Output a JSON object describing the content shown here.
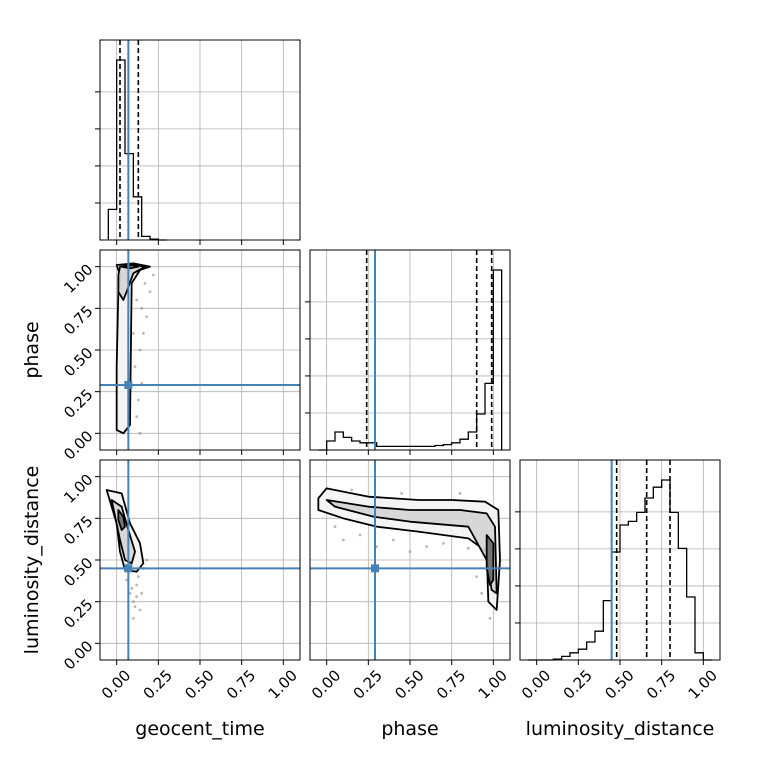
{
  "chart_data": {
    "type": "corner",
    "parameters": [
      "geocent_time",
      "phase",
      "luminosity_distance"
    ],
    "truth": {
      "geocent_time": 0.07,
      "phase": 0.29,
      "luminosity_distance": 0.45
    },
    "axis_range": [
      -0.1,
      1.1
    ],
    "ticks": [
      0.0,
      0.25,
      0.5,
      0.75,
      1.0
    ],
    "tick_labels": [
      "0.00",
      "0.25",
      "0.50",
      "0.75",
      "1.00"
    ],
    "grid": true,
    "colors": {
      "truth": "#4682b4",
      "contour": "#000000",
      "grid": "#b0b0b0",
      "sample": "#808080"
    },
    "histograms": [
      {
        "parameter": "geocent_time",
        "bin_edges": [
          -0.05,
          0.0,
          0.05,
          0.1,
          0.15,
          0.2,
          0.25,
          0.3
        ],
        "counts": [
          0.17,
          1.0,
          0.48,
          0.24,
          0.02,
          0.005,
          0.0
        ],
        "quantiles": [
          0.02,
          0.07,
          0.13
        ]
      },
      {
        "parameter": "phase",
        "bin_edges": [
          -0.05,
          0.0,
          0.05,
          0.1,
          0.15,
          0.2,
          0.25,
          0.3,
          0.35,
          0.4,
          0.45,
          0.5,
          0.55,
          0.6,
          0.65,
          0.7,
          0.75,
          0.8,
          0.85,
          0.9,
          0.95,
          1.0,
          1.05
        ],
        "counts": [
          0.0,
          0.05,
          0.1,
          0.07,
          0.05,
          0.04,
          0.04,
          0.02,
          0.02,
          0.02,
          0.02,
          0.02,
          0.02,
          0.02,
          0.025,
          0.03,
          0.04,
          0.06,
          0.1,
          0.2,
          0.37,
          1.0
        ],
        "quantiles": [
          0.24,
          0.9,
          0.99
        ]
      },
      {
        "parameter": "luminosity_distance",
        "bin_edges": [
          -0.05,
          0.0,
          0.05,
          0.1,
          0.15,
          0.2,
          0.25,
          0.3,
          0.35,
          0.4,
          0.45,
          0.5,
          0.55,
          0.6,
          0.65,
          0.7,
          0.75,
          0.8,
          0.85,
          0.9,
          0.95,
          1.0,
          1.05
        ],
        "counts": [
          0.0,
          0.0,
          0.0,
          0.005,
          0.02,
          0.04,
          0.06,
          0.1,
          0.16,
          0.33,
          0.6,
          0.75,
          0.77,
          0.82,
          0.9,
          0.96,
          1.0,
          0.82,
          0.62,
          0.35,
          0.04,
          0.0
        ],
        "quantiles": [
          0.48,
          0.66,
          0.8
        ]
      }
    ],
    "contours_2d": [
      {
        "x": "geocent_time",
        "y": "phase",
        "levels": [
          [
            [
              0.0,
              1.01
            ],
            [
              0.1,
              1.02
            ],
            [
              0.2,
              1.0
            ],
            [
              0.14,
              0.98
            ],
            [
              0.09,
              0.9
            ],
            [
              0.08,
              0.05
            ],
            [
              0.04,
              0.0
            ],
            [
              0.0,
              0.02
            ],
            [
              0.0,
              0.4
            ],
            [
              0.01,
              0.85
            ],
            [
              0.02,
              0.95
            ],
            [
              0.0,
              1.01
            ]
          ],
          [
            [
              0.02,
              1.0
            ],
            [
              0.1,
              1.01
            ],
            [
              0.17,
              1.0
            ],
            [
              0.1,
              0.96
            ],
            [
              0.06,
              0.85
            ],
            [
              0.04,
              0.8
            ],
            [
              0.01,
              0.85
            ],
            [
              0.01,
              0.95
            ],
            [
              0.02,
              1.0
            ]
          ],
          [
            [
              0.03,
              1.0
            ],
            [
              0.09,
              1.01
            ],
            [
              0.13,
              1.0
            ],
            [
              0.08,
              0.99
            ],
            [
              0.03,
              1.0
            ]
          ]
        ],
        "samples": [
          [
            0.12,
            0.1
          ],
          [
            0.15,
            0.3
          ],
          [
            0.14,
            0.5
          ],
          [
            0.16,
            0.6
          ],
          [
            0.18,
            0.7
          ],
          [
            0.2,
            0.85
          ],
          [
            0.22,
            0.95
          ],
          [
            0.13,
            0.2
          ],
          [
            0.11,
            0.4
          ],
          [
            0.15,
            0.75
          ],
          [
            0.17,
            0.9
          ],
          [
            0.1,
            0.6
          ],
          [
            0.12,
            0.8
          ],
          [
            0.19,
            1.0
          ],
          [
            0.14,
            0.0
          ]
        ]
      },
      {
        "x": "geocent_time",
        "y": "luminosity_distance",
        "levels": [
          [
            [
              -0.06,
              0.92
            ],
            [
              0.03,
              0.9
            ],
            [
              0.08,
              0.72
            ],
            [
              0.14,
              0.6
            ],
            [
              0.16,
              0.48
            ],
            [
              0.12,
              0.43
            ],
            [
              0.05,
              0.44
            ],
            [
              0.02,
              0.55
            ],
            [
              0.0,
              0.72
            ],
            [
              -0.06,
              0.92
            ]
          ],
          [
            [
              -0.03,
              0.86
            ],
            [
              0.03,
              0.82
            ],
            [
              0.07,
              0.68
            ],
            [
              0.11,
              0.55
            ],
            [
              0.09,
              0.48
            ],
            [
              0.05,
              0.5
            ],
            [
              0.02,
              0.62
            ],
            [
              -0.03,
              0.86
            ]
          ],
          [
            [
              0.01,
              0.8
            ],
            [
              0.04,
              0.76
            ],
            [
              0.05,
              0.7
            ],
            [
              0.03,
              0.68
            ],
            [
              0.01,
              0.74
            ],
            [
              0.01,
              0.8
            ]
          ]
        ],
        "samples": [
          [
            0.08,
            0.3
          ],
          [
            0.1,
            0.25
          ],
          [
            0.12,
            0.35
          ],
          [
            0.13,
            0.4
          ],
          [
            0.06,
            0.38
          ],
          [
            0.15,
            0.3
          ],
          [
            0.14,
            0.2
          ],
          [
            0.1,
            0.15
          ],
          [
            0.16,
            0.45
          ],
          [
            0.18,
            0.5
          ],
          [
            0.05,
            0.6
          ],
          [
            0.12,
            0.28
          ],
          [
            0.09,
            0.33
          ],
          [
            0.11,
            0.22
          ]
        ]
      },
      {
        "x": "phase",
        "y": "luminosity_distance",
        "levels": [
          [
            [
              -0.05,
              0.87
            ],
            [
              0.0,
              0.93
            ],
            [
              0.25,
              0.88
            ],
            [
              0.55,
              0.86
            ],
            [
              0.75,
              0.86
            ],
            [
              0.95,
              0.85
            ],
            [
              1.03,
              0.8
            ],
            [
              1.04,
              0.5
            ],
            [
              1.02,
              0.2
            ],
            [
              0.97,
              0.25
            ],
            [
              0.96,
              0.55
            ],
            [
              0.85,
              0.63
            ],
            [
              0.55,
              0.67
            ],
            [
              0.3,
              0.7
            ],
            [
              0.1,
              0.75
            ],
            [
              -0.05,
              0.8
            ],
            [
              -0.05,
              0.87
            ]
          ],
          [
            [
              0.0,
              0.86
            ],
            [
              0.25,
              0.82
            ],
            [
              0.5,
              0.8
            ],
            [
              0.8,
              0.8
            ],
            [
              0.96,
              0.78
            ],
            [
              1.01,
              0.7
            ],
            [
              1.02,
              0.3
            ],
            [
              0.99,
              0.32
            ],
            [
              0.96,
              0.5
            ],
            [
              0.85,
              0.7
            ],
            [
              0.5,
              0.73
            ],
            [
              0.28,
              0.76
            ],
            [
              0.05,
              0.82
            ],
            [
              0.0,
              0.86
            ]
          ],
          [
            [
              0.96,
              0.65
            ],
            [
              1.0,
              0.6
            ],
            [
              1.0,
              0.38
            ],
            [
              0.98,
              0.35
            ],
            [
              0.96,
              0.45
            ],
            [
              0.96,
              0.65
            ]
          ]
        ],
        "samples": [
          [
            0.1,
            0.62
          ],
          [
            0.3,
            0.58
          ],
          [
            0.5,
            0.55
          ],
          [
            0.7,
            0.6
          ],
          [
            0.85,
            0.57
          ],
          [
            0.2,
            0.65
          ],
          [
            0.4,
            0.62
          ],
          [
            0.6,
            0.58
          ],
          [
            0.9,
            0.4
          ],
          [
            0.93,
            0.3
          ],
          [
            0.98,
            0.15
          ],
          [
            0.05,
            0.7
          ],
          [
            0.15,
            0.92
          ],
          [
            0.45,
            0.9
          ],
          [
            0.8,
            0.9
          ]
        ]
      }
    ]
  }
}
